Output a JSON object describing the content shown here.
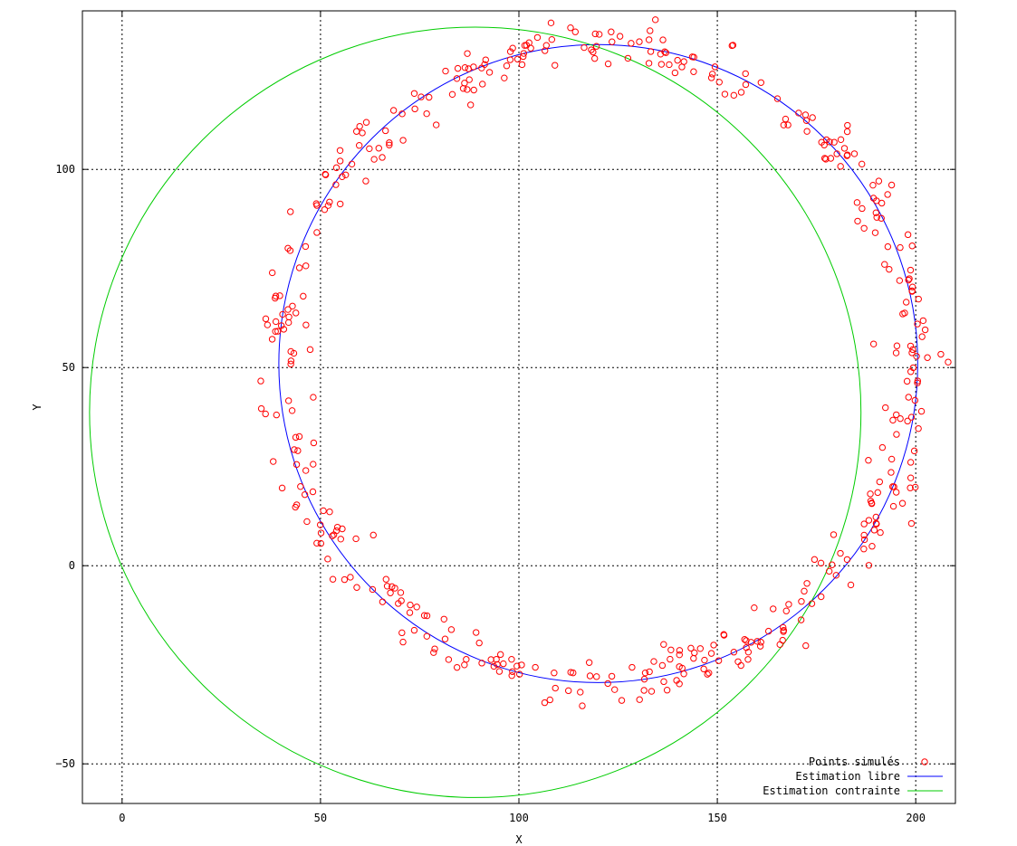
{
  "chart_data": {
    "type": "scatter",
    "title": "",
    "xlabel": "X",
    "ylabel": "Y",
    "xlim": [
      -10,
      210
    ],
    "ylim": [
      -60,
      140
    ],
    "xticks": [
      0,
      50,
      100,
      150,
      200
    ],
    "yticks": [
      -50,
      0,
      50,
      100
    ],
    "xtick_labels": [
      "0",
      "50",
      "100",
      "150",
      "200"
    ],
    "ytick_labels": [
      "−50",
      "0",
      "50",
      "100"
    ],
    "grid": true,
    "legend_position": "bottom-right",
    "series": [
      {
        "name": "Points simulés",
        "kind": "points",
        "color": "#ff0000",
        "marker": "open-circle",
        "count": 450,
        "ring_center": [
          120,
          51
        ],
        "ring_radius": 80,
        "ring_spread": 3
      },
      {
        "name": "Estimation libre",
        "kind": "circle",
        "color": "#0000ff",
        "center": [
          120,
          51
        ],
        "radius": 80.5
      },
      {
        "name": "Estimation contrainte",
        "kind": "circle",
        "color": "#00cc00",
        "center": [
          89,
          38.7
        ],
        "radius": 97.2
      }
    ]
  }
}
